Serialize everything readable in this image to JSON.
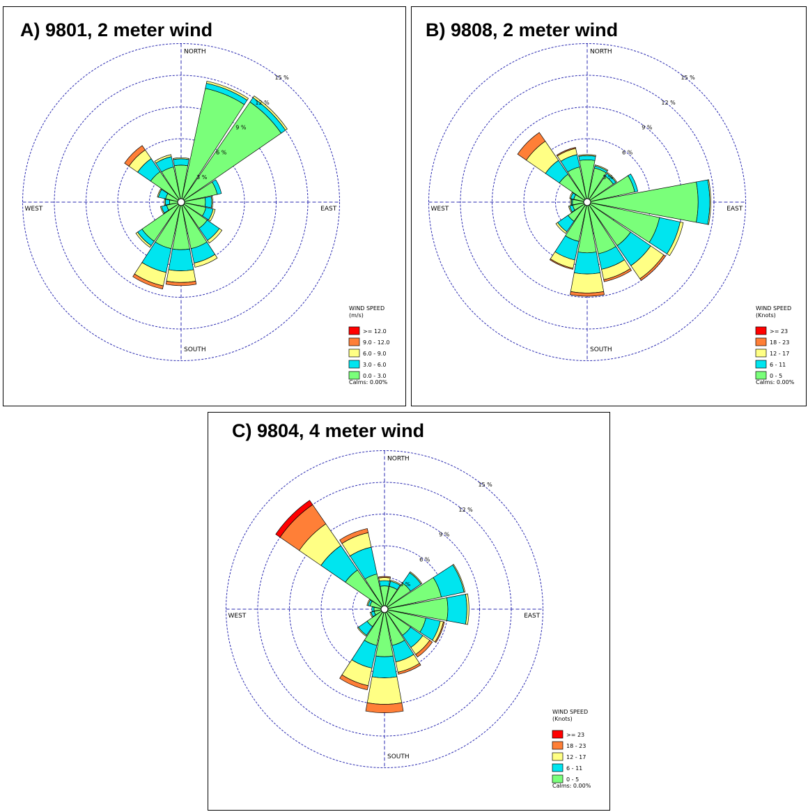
{
  "chart_data": [
    {
      "type": "wind-rose",
      "title": "A) 9801, 2 meter wind",
      "directions": [
        "NORTH",
        "EAST",
        "SOUTH",
        "WEST"
      ],
      "rings_percent": [
        3,
        6,
        9,
        12,
        15
      ],
      "ring_labels": [
        "3 %",
        "6 %",
        "9 %",
        "12 %",
        "15 %"
      ],
      "legend_title": "WIND SPEED",
      "legend_unit": "(m/s)",
      "legend_bins": [
        ">= 12.0",
        "9.0 - 12.0",
        "6.0 - 9.0",
        "3.0 - 6.0",
        "0.0 - 3.0"
      ],
      "bin_colors": [
        "#ff0000",
        "#ff7f37",
        "#ffff84",
        "#00e5ef",
        "#7aff7a"
      ],
      "calms": "Calms: 0.00%",
      "petal_order": "16 sectors clockwise from N (N, NNE, NE, ENE, E, ESE, SE, SSE, S, SSW, SW, WSW, W, WNW, NW, NNW); stacked percent per bin from 0.0-3.0 upward",
      "petals": [
        [
          3.5,
          0.6,
          0.1,
          0.0,
          0.0
        ],
        [
          11.0,
          0.5,
          0.2,
          0.0,
          0.0
        ],
        [
          11.5,
          0.5,
          0.2,
          0.0,
          0.0
        ],
        [
          3.5,
          0.4,
          0.0,
          0.0,
          0.0
        ],
        [
          2.3,
          0.6,
          0.1,
          0.0,
          0.0
        ],
        [
          2.4,
          0.7,
          0.2,
          0.0,
          0.0
        ],
        [
          3.0,
          1.4,
          0.3,
          0.0,
          0.0
        ],
        [
          4.5,
          1.4,
          0.4,
          0.0,
          0.0
        ],
        [
          4.5,
          2.0,
          1.1,
          0.3,
          0.0
        ],
        [
          4.5,
          2.3,
          1.3,
          0.3,
          0.0
        ],
        [
          4.5,
          0.5,
          0.2,
          0.0,
          0.0
        ],
        [
          1.4,
          0.5,
          0.1,
          0.0,
          0.0
        ],
        [
          1.1,
          0.4,
          0.1,
          0.0,
          0.0
        ],
        [
          1.5,
          0.7,
          0.1,
          0.0,
          0.0
        ],
        [
          3.5,
          1.5,
          1.0,
          0.5,
          0.0
        ],
        [
          3.4,
          1.0,
          0.2,
          0.0,
          0.0
        ]
      ]
    },
    {
      "type": "wind-rose",
      "title": "B) 9808, 2 meter wind",
      "directions": [
        "NORTH",
        "EAST",
        "SOUTH",
        "WEST"
      ],
      "rings_percent": [
        3,
        6,
        9,
        12,
        15
      ],
      "ring_labels": [
        "3 %",
        "6 %",
        "9 %",
        "12 %",
        "15 %"
      ],
      "legend_title": "WIND SPEED",
      "legend_unit": "(Knots)",
      "legend_bins": [
        ">= 23",
        "18 - 23",
        "12 - 17",
        "6 - 11",
        "0 - 5"
      ],
      "bin_colors": [
        "#ff0000",
        "#ff7f37",
        "#ffff84",
        "#00e5ef",
        "#7aff7a"
      ],
      "calms": "Calms: 0.00%",
      "petal_order": "16 sectors clockwise from N (N, NNE, NE, ENE, E, ESE, SE, SSE, S, SSW, SW, WSW, W, WNW, NW, NNW); stacked percent per bin from 0 - 5 upward",
      "petals": [
        [
          4.0,
          0.4,
          0.1,
          0.0,
          0.0
        ],
        [
          3.3,
          0.2,
          0.1,
          0.0,
          0.0
        ],
        [
          3.0,
          0.3,
          0.1,
          0.0,
          0.0
        ],
        [
          4.6,
          0.3,
          0.0,
          0.0,
          0.0
        ],
        [
          10.5,
          1.1,
          0.1,
          0.0,
          0.0
        ],
        [
          7.0,
          2.0,
          0.3,
          0.0,
          0.0
        ],
        [
          5.0,
          2.3,
          1.5,
          0.2,
          0.0
        ],
        [
          5.0,
          1.5,
          1.0,
          0.2,
          0.0
        ],
        [
          4.8,
          2.0,
          1.8,
          0.3,
          0.0
        ],
        [
          3.8,
          1.8,
          0.8,
          0.1,
          0.0
        ],
        [
          2.2,
          1.2,
          0.2,
          0.0,
          0.0
        ],
        [
          1.4,
          0.3,
          0.1,
          0.0,
          0.0
        ],
        [
          1.4,
          0.1,
          0.1,
          0.0,
          0.0
        ],
        [
          1.3,
          0.3,
          0.1,
          0.0,
          0.0
        ],
        [
          3.2,
          1.6,
          2.2,
          1.0,
          0.0
        ],
        [
          3.4,
          1.2,
          0.6,
          0.1,
          0.0
        ]
      ]
    },
    {
      "type": "wind-rose",
      "title": "C) 9804, 4 meter wind",
      "directions": [
        "NORTH",
        "EAST",
        "SOUTH",
        "WEST"
      ],
      "rings_percent": [
        3,
        6,
        9,
        12,
        15
      ],
      "ring_labels": [
        "3 %",
        "6 %",
        "9 %",
        "12 %",
        "15 %"
      ],
      "legend_title": "WIND SPEED",
      "legend_unit": "(Knots)",
      "legend_bins": [
        ">= 23",
        "18 - 23",
        "12 - 17",
        "6 - 11",
        "0 - 5"
      ],
      "bin_colors": [
        "#ff0000",
        "#ff7f37",
        "#ffff84",
        "#00e5ef",
        "#7aff7a"
      ],
      "calms": "Calms: 0.00%",
      "petal_order": "16 sectors clockwise from N (N, NNE, NE, ENE, E, ESE, SE, SSE, S, SSW, SW, WSW, W, WNW, NW, NNW); stacked percent per bin from 0 - 5 upward",
      "petals": [
        [
          2.2,
          0.5,
          0.3,
          0.1,
          0.0
        ],
        [
          2.2,
          0.5,
          0.1,
          0.0,
          0.0
        ],
        [
          3.0,
          1.2,
          0.1,
          0.0,
          0.0
        ],
        [
          5.5,
          2.2,
          0.1,
          0.0,
          0.0
        ],
        [
          6.0,
          1.8,
          0.2,
          0.0,
          0.0
        ],
        [
          4.0,
          1.4,
          0.3,
          0.1,
          0.0
        ],
        [
          3.0,
          1.4,
          0.8,
          0.3,
          0.0
        ],
        [
          3.5,
          1.6,
          1.0,
          0.2,
          0.0
        ],
        [
          4.5,
          2.0,
          2.5,
          0.8,
          0.0
        ],
        [
          3.5,
          2.2,
          1.7,
          0.4,
          0.0
        ],
        [
          2.0,
          1.0,
          0.1,
          0.0,
          0.0
        ],
        [
          1.0,
          0.3,
          0.1,
          0.0,
          0.0
        ],
        [
          1.0,
          0.2,
          0.0,
          0.0,
          0.0
        ],
        [
          1.4,
          0.2,
          0.1,
          0.0,
          0.0
        ],
        [
          4.5,
          2.8,
          2.5,
          2.2,
          0.5
        ],
        [
          3.4,
          2.6,
          1.4,
          0.4,
          0.0
        ]
      ]
    }
  ]
}
